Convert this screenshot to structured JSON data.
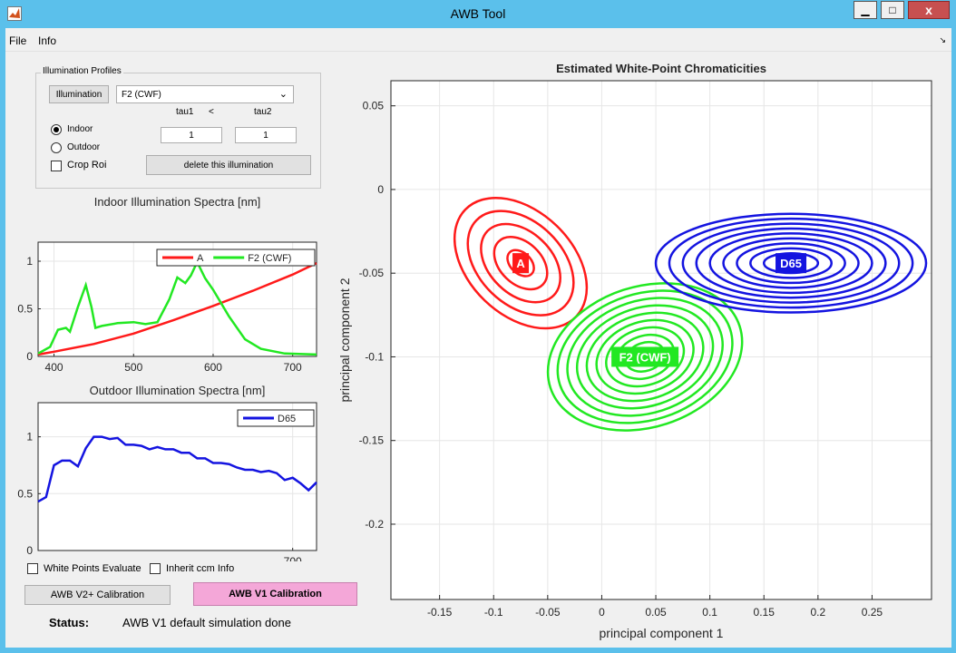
{
  "window": {
    "title": "AWB Tool",
    "minimize": "▁",
    "maximize": "□",
    "close": "x"
  },
  "menu": {
    "file": "File",
    "info": "Info"
  },
  "profiles": {
    "group_label": "Illumination Profiles",
    "illumination_button": "Illumination",
    "selected": "F2 (CWF)",
    "tau1_label": "tau1",
    "lt": "<",
    "tau2_label": "tau2",
    "tau1_value": "1",
    "tau2_value": "1",
    "indoor": "Indoor",
    "outdoor": "Outdoor",
    "crop_roi": "Crop Roi",
    "delete_button": "delete this illumination"
  },
  "options": {
    "white_points": "White Points Evaluate",
    "inherit_ccm": "Inherit ccm Info"
  },
  "buttons": {
    "v2": "AWB V2+ Calibration",
    "v1": "AWB V1 Calibration"
  },
  "status": {
    "label": "Status:",
    "value": "AWB V1 default simulation done"
  },
  "colors": {
    "red": "#ff1a1a",
    "green": "#22e822",
    "blue": "#1414e0",
    "pink": "#f4a7d8"
  },
  "chart_data": [
    {
      "type": "line",
      "title": "Indoor Illumination Spectra [nm]",
      "xlim": [
        380,
        730
      ],
      "ylim": [
        0,
        1.2
      ],
      "xticks": [
        400,
        500,
        600,
        700
      ],
      "yticks": [
        0,
        0.5,
        1
      ],
      "series": [
        {
          "name": "A",
          "color": "#ff1a1a",
          "points": [
            [
              380,
              0.02
            ],
            [
              400,
              0.05
            ],
            [
              450,
              0.13
            ],
            [
              500,
              0.24
            ],
            [
              550,
              0.38
            ],
            [
              600,
              0.53
            ],
            [
              650,
              0.69
            ],
            [
              700,
              0.86
            ],
            [
              730,
              0.98
            ]
          ]
        },
        {
          "name": "F2 (CWF)",
          "color": "#22e822",
          "points": [
            [
              380,
              0.03
            ],
            [
              395,
              0.1
            ],
            [
              405,
              0.28
            ],
            [
              415,
              0.3
            ],
            [
              420,
              0.26
            ],
            [
              430,
              0.52
            ],
            [
              440,
              0.75
            ],
            [
              447,
              0.52
            ],
            [
              452,
              0.3
            ],
            [
              460,
              0.32
            ],
            [
              480,
              0.35
            ],
            [
              500,
              0.36
            ],
            [
              515,
              0.34
            ],
            [
              530,
              0.36
            ],
            [
              545,
              0.6
            ],
            [
              555,
              0.83
            ],
            [
              565,
              0.77
            ],
            [
              572,
              0.85
            ],
            [
              580,
              0.99
            ],
            [
              590,
              0.82
            ],
            [
              600,
              0.7
            ],
            [
              620,
              0.42
            ],
            [
              640,
              0.18
            ],
            [
              660,
              0.08
            ],
            [
              690,
              0.03
            ],
            [
              730,
              0.02
            ]
          ]
        }
      ]
    },
    {
      "type": "line",
      "title": "Outdoor Illumination Spectra [nm]",
      "xlim": [
        380,
        730
      ],
      "ylim": [
        0,
        1.3
      ],
      "xticks": [
        700
      ],
      "yticks": [
        0,
        0.5,
        1
      ],
      "series": [
        {
          "name": "D65",
          "color": "#1414e0",
          "points": [
            [
              380,
              0.43
            ],
            [
              390,
              0.47
            ],
            [
              400,
              0.75
            ],
            [
              410,
              0.79
            ],
            [
              420,
              0.79
            ],
            [
              430,
              0.74
            ],
            [
              440,
              0.9
            ],
            [
              450,
              1.0
            ],
            [
              460,
              1.0
            ],
            [
              470,
              0.98
            ],
            [
              480,
              0.99
            ],
            [
              490,
              0.93
            ],
            [
              500,
              0.93
            ],
            [
              510,
              0.92
            ],
            [
              520,
              0.89
            ],
            [
              530,
              0.91
            ],
            [
              540,
              0.89
            ],
            [
              550,
              0.89
            ],
            [
              560,
              0.86
            ],
            [
              570,
              0.86
            ],
            [
              580,
              0.81
            ],
            [
              590,
              0.81
            ],
            [
              600,
              0.77
            ],
            [
              610,
              0.77
            ],
            [
              620,
              0.76
            ],
            [
              630,
              0.73
            ],
            [
              640,
              0.71
            ],
            [
              650,
              0.71
            ],
            [
              660,
              0.69
            ],
            [
              670,
              0.7
            ],
            [
              680,
              0.68
            ],
            [
              690,
              0.62
            ],
            [
              700,
              0.64
            ],
            [
              710,
              0.59
            ],
            [
              720,
              0.53
            ],
            [
              730,
              0.6
            ]
          ]
        }
      ]
    },
    {
      "type": "scatter",
      "title": "Estimated White-Point Chromaticities",
      "xlabel": "principal component 1",
      "ylabel": "principal component 2",
      "xlim": [
        -0.195,
        0.305
      ],
      "ylim": [
        -0.245,
        0.065
      ],
      "xticks": [
        -0.15,
        -0.1,
        -0.05,
        0,
        0.05,
        0.1,
        0.15,
        0.2,
        0.25
      ],
      "yticks": [
        0.05,
        0,
        -0.05,
        -0.1,
        -0.15,
        -0.2
      ],
      "clusters": [
        {
          "name": "A",
          "color": "#ff1a1a",
          "center": [
            -0.075,
            -0.044
          ],
          "rx": 0.048,
          "ry": 0.092,
          "rot": -46,
          "rings": 5
        },
        {
          "name": "F2 (CWF)",
          "color": "#22e822",
          "center": [
            0.04,
            -0.1
          ],
          "rx": 0.092,
          "ry": 0.084,
          "rot": -18,
          "rings": 10
        },
        {
          "name": "D65",
          "color": "#1414e0",
          "center": [
            0.175,
            -0.044
          ],
          "rx": 0.125,
          "ry": 0.059,
          "rot": 0,
          "rings": 10
        }
      ]
    }
  ]
}
